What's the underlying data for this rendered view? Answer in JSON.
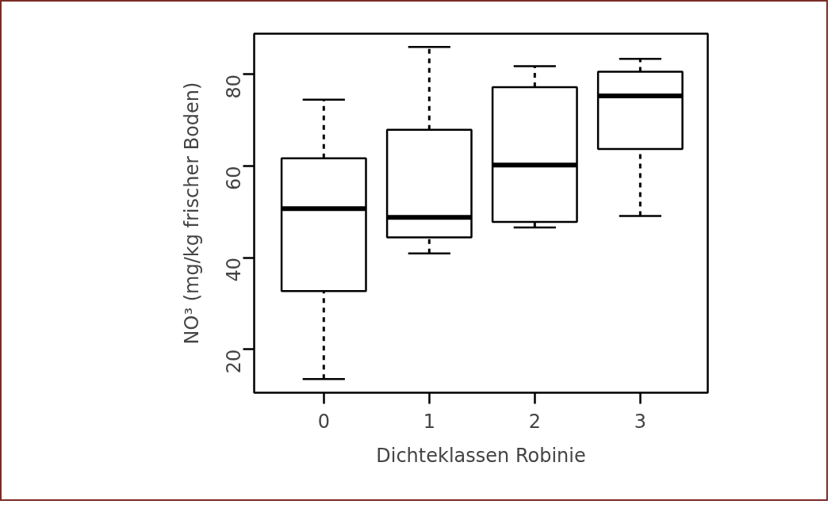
{
  "chart_data": {
    "type": "box",
    "xlabel": "Dichteklassen Robinie",
    "ylabel": "NO³ (mg/kg frischer Boden)",
    "categories": [
      "0",
      "1",
      "2",
      "3"
    ],
    "boxes": [
      {
        "low": 13.5,
        "q1": 32.7,
        "median": 50.7,
        "q3": 61.7,
        "high": 74.5
      },
      {
        "low": 40.9,
        "q1": 44.4,
        "median": 48.8,
        "q3": 67.9,
        "high": 86.0
      },
      {
        "low": 46.6,
        "q1": 47.8,
        "median": 60.2,
        "q3": 77.2,
        "high": 81.8
      },
      {
        "low": 49.1,
        "q1": 63.7,
        "median": 75.3,
        "q3": 80.6,
        "high": 83.4
      }
    ],
    "ylim": [
      10.5,
      88.9
    ],
    "yticks": [
      20,
      40,
      60,
      80
    ]
  }
}
